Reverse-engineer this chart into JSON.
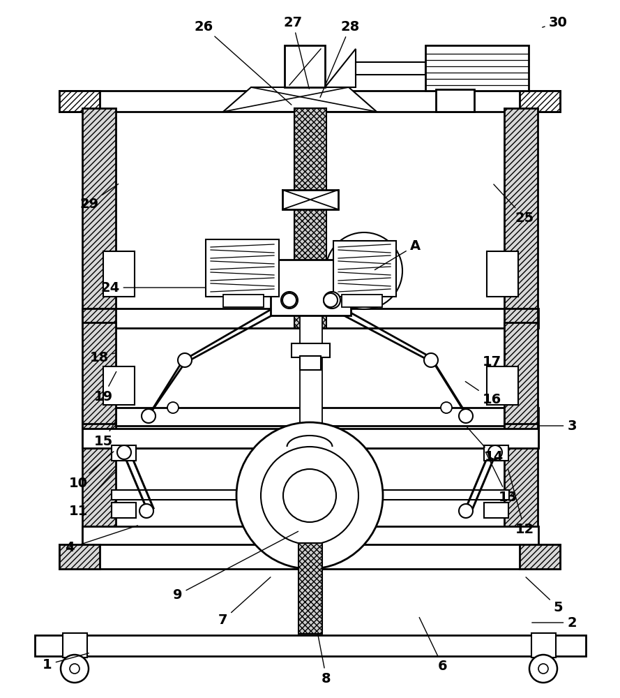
{
  "background_color": "#ffffff",
  "line_color": "#000000",
  "annotations": [
    [
      "1",
      68,
      48,
      130,
      65
    ],
    [
      "2",
      820,
      108,
      760,
      108
    ],
    [
      "3",
      820,
      390,
      770,
      390
    ],
    [
      "4",
      100,
      215,
      200,
      248
    ],
    [
      "5",
      800,
      130,
      752,
      175
    ],
    [
      "6",
      635,
      45,
      600,
      118
    ],
    [
      "7",
      320,
      112,
      390,
      175
    ],
    [
      "8",
      468,
      28,
      455,
      95
    ],
    [
      "9",
      255,
      148,
      430,
      240
    ],
    [
      "10",
      112,
      308,
      165,
      355
    ],
    [
      "11",
      112,
      268,
      168,
      330
    ],
    [
      "12",
      752,
      242,
      728,
      330
    ],
    [
      "13",
      728,
      288,
      695,
      355
    ],
    [
      "14",
      708,
      345,
      668,
      390
    ],
    [
      "15",
      148,
      368,
      168,
      400
    ],
    [
      "16",
      705,
      428,
      665,
      455
    ],
    [
      "17",
      705,
      482,
      728,
      495
    ],
    [
      "18",
      142,
      488,
      168,
      495
    ],
    [
      "19",
      148,
      432,
      168,
      470
    ],
    [
      "24",
      158,
      588,
      298,
      588
    ],
    [
      "25",
      752,
      688,
      706,
      738
    ],
    [
      "26",
      292,
      962,
      420,
      848
    ],
    [
      "27",
      420,
      968,
      444,
      870
    ],
    [
      "28",
      502,
      962,
      458,
      858
    ],
    [
      "29",
      128,
      708,
      172,
      738
    ],
    [
      "30",
      800,
      968,
      775,
      960
    ],
    [
      "A",
      595,
      648,
      535,
      612
    ]
  ]
}
